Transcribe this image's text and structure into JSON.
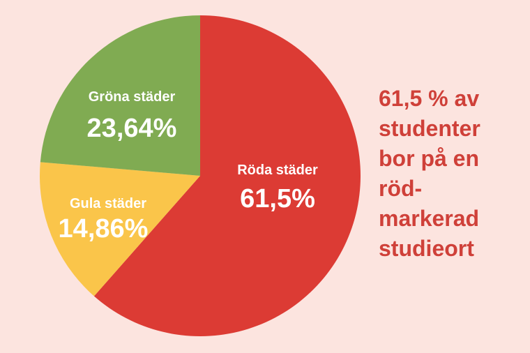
{
  "colors": {
    "background": "#fce4df",
    "red": "#dc3b34",
    "green": "#80ab52",
    "yellow": "#fac54a",
    "headline": "#cf4039",
    "label": "#ffffff"
  },
  "chart_data": {
    "type": "pie",
    "title": "",
    "slices": [
      {
        "label": "Röda städer",
        "value": 61.5,
        "value_label": "61,5%",
        "color": "#dc3b34"
      },
      {
        "label": "Gula städer",
        "value": 14.86,
        "value_label": "14,86%",
        "color": "#fac54a"
      },
      {
        "label": "Gröna städer",
        "value": 23.64,
        "value_label": "23,64%",
        "color": "#80ab52"
      }
    ],
    "legend": "none"
  },
  "headline": {
    "lines": [
      "61,5 % av",
      "studenter",
      "bor på en",
      "röd-",
      "markerad",
      "studieort"
    ]
  }
}
